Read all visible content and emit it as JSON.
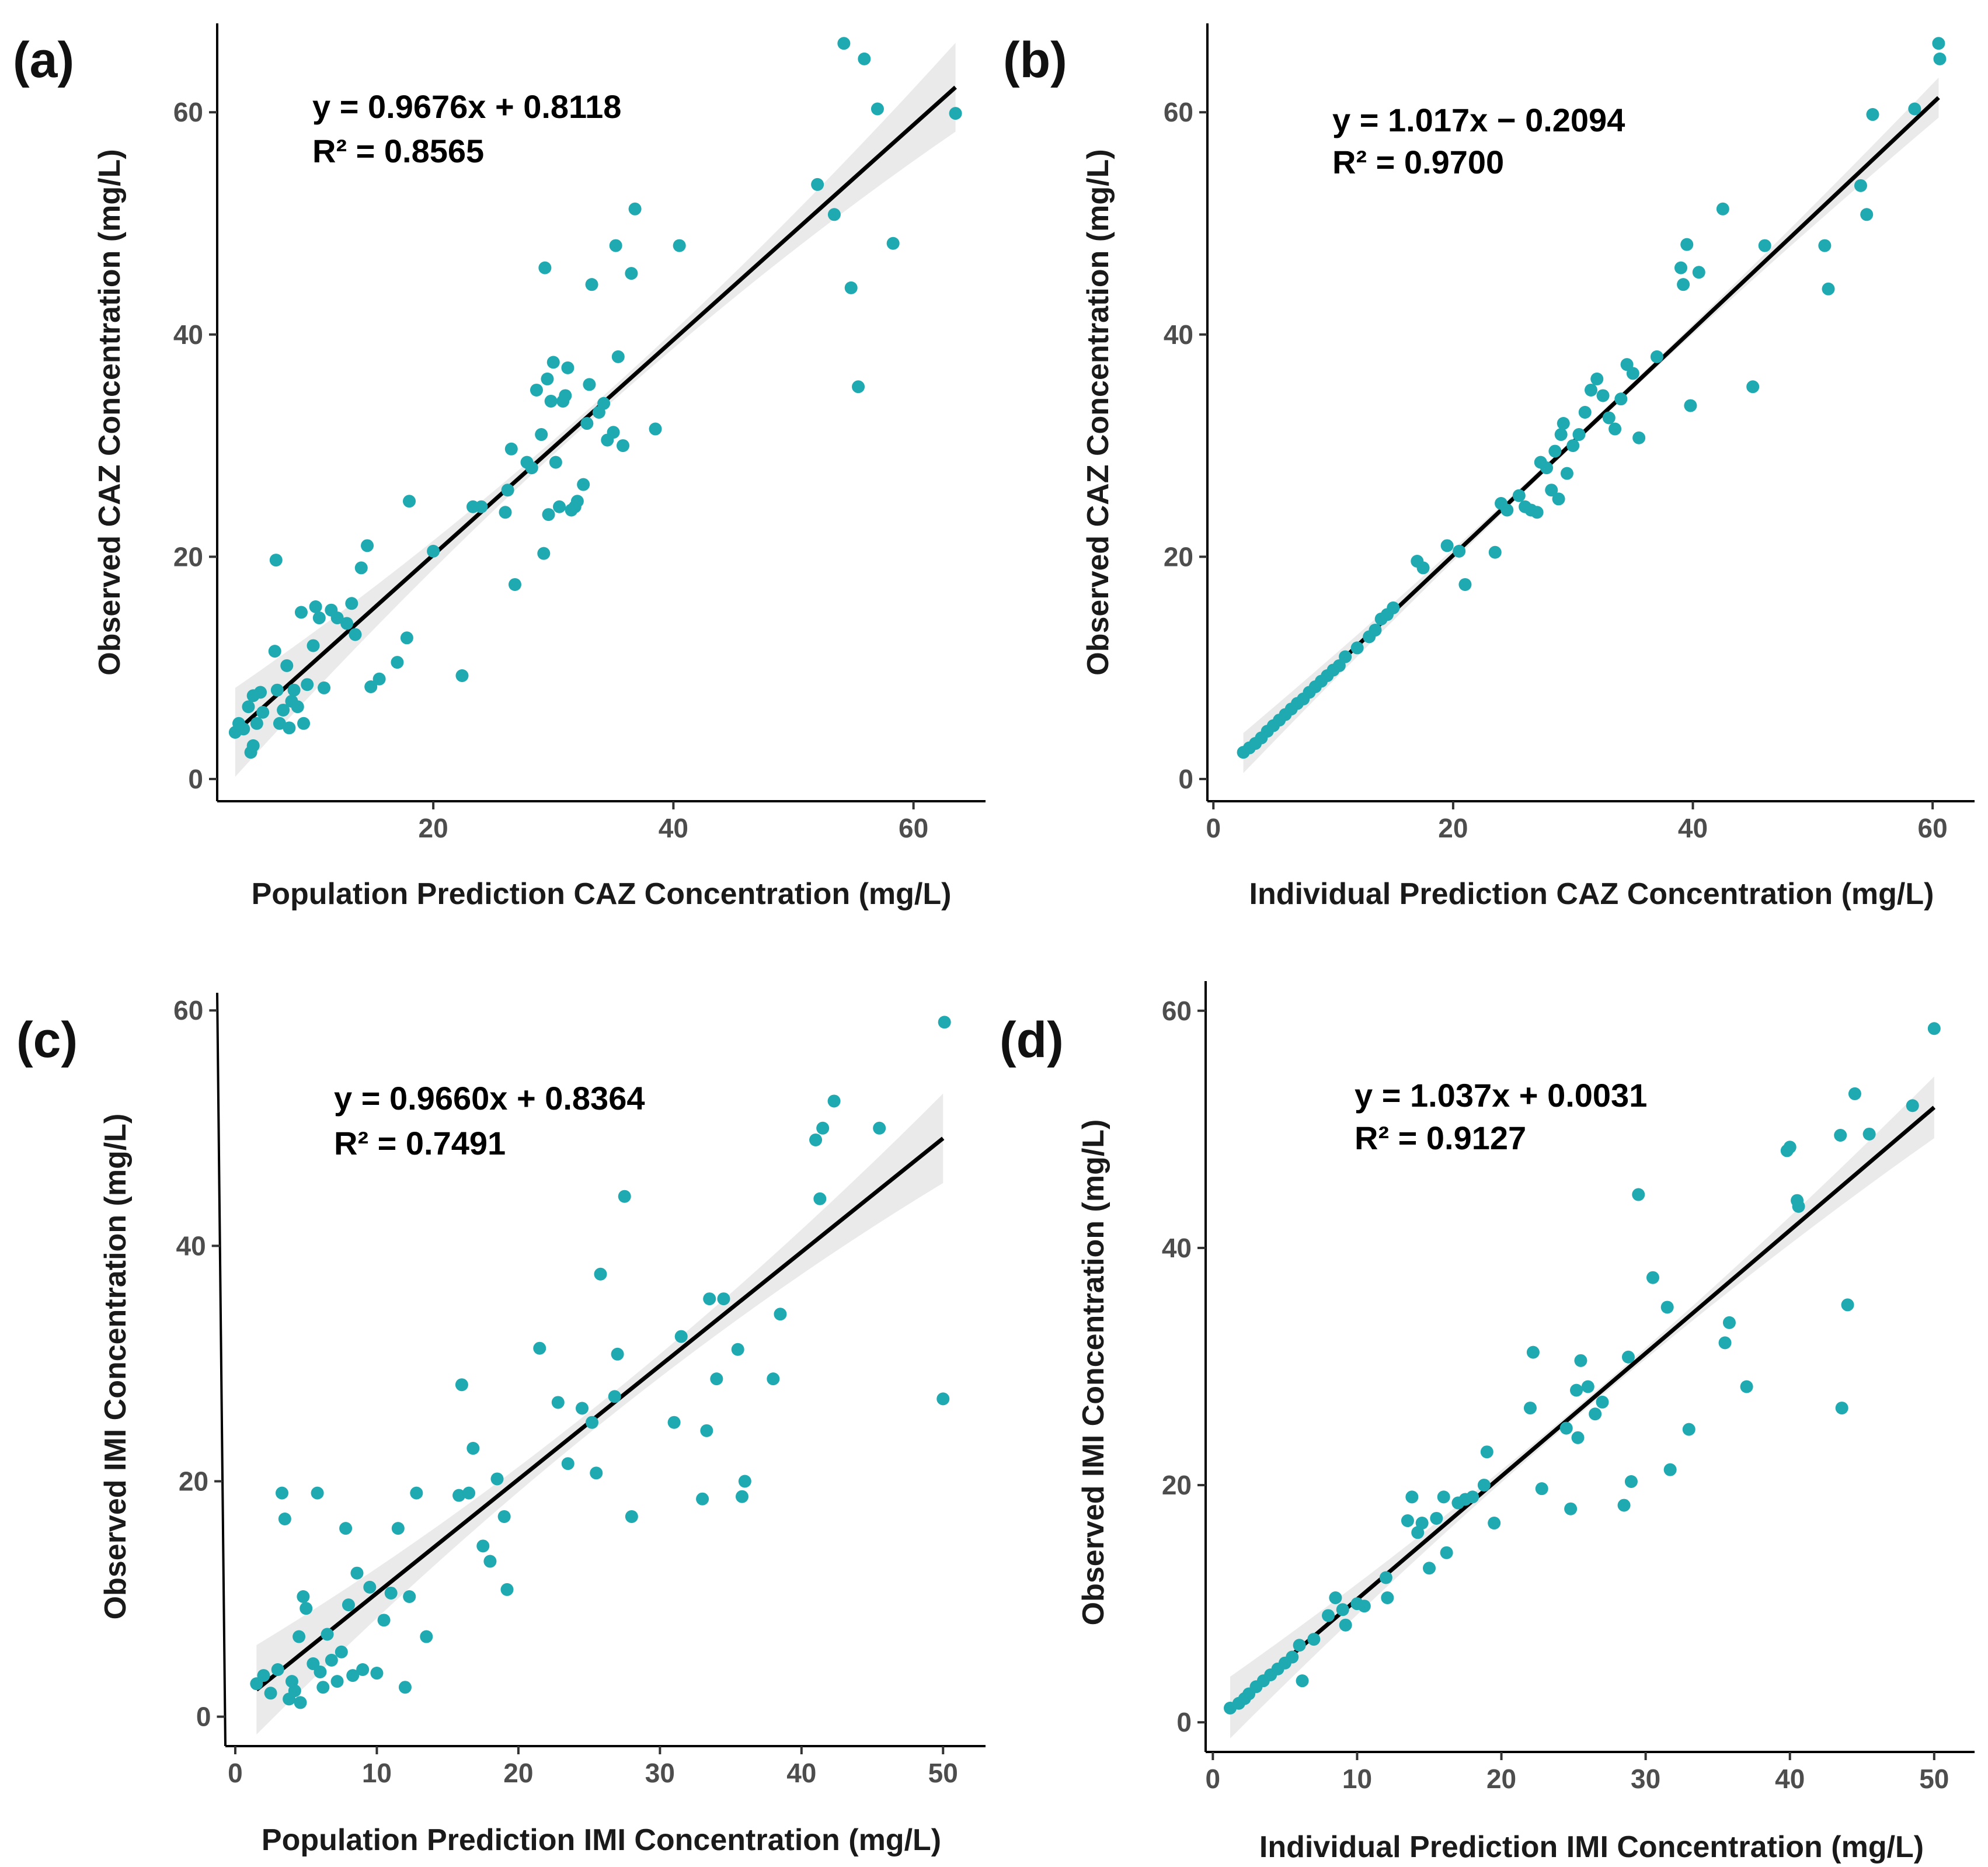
{
  "chart_data": [
    {
      "panel": "(a)",
      "type": "scatter",
      "xlabel": "Population Prediction CAZ Concentration (mg/L)",
      "ylabel": "Observed CAZ Concentration (mg/L)",
      "equation": "y = 0.9676x + 0.8118",
      "r2": "R² = 0.8565",
      "slope": 0.9676,
      "intercept": 0.8118,
      "xlim": [
        2,
        66
      ],
      "ylim": [
        -2,
        68
      ],
      "xticks": [
        20,
        40,
        60
      ],
      "yticks": [
        0,
        20,
        40,
        60
      ],
      "fit_range": [
        3.5,
        63.5
      ],
      "band_width": [
        0.6,
        4.0
      ],
      "points": [
        [
          3.5,
          4.2
        ],
        [
          3.8,
          5.0
        ],
        [
          4.2,
          4.5
        ],
        [
          4.6,
          6.5
        ],
        [
          4.8,
          2.4
        ],
        [
          5.0,
          3.0
        ],
        [
          5.0,
          7.5
        ],
        [
          5.3,
          5.0
        ],
        [
          5.6,
          7.8
        ],
        [
          5.8,
          6.0
        ],
        [
          6.8,
          11.5
        ],
        [
          6.9,
          19.7
        ],
        [
          7.0,
          8.0
        ],
        [
          7.2,
          5.0
        ],
        [
          7.5,
          6.2
        ],
        [
          7.8,
          10.2
        ],
        [
          8.0,
          4.6
        ],
        [
          8.2,
          7.0
        ],
        [
          8.4,
          8.0
        ],
        [
          8.7,
          6.5
        ],
        [
          9.0,
          15.0
        ],
        [
          9.2,
          5.0
        ],
        [
          9.5,
          8.5
        ],
        [
          10.0,
          12.0
        ],
        [
          10.2,
          15.5
        ],
        [
          10.5,
          14.5
        ],
        [
          10.9,
          8.2
        ],
        [
          11.5,
          15.2
        ],
        [
          12.0,
          14.5
        ],
        [
          12.8,
          14.0
        ],
        [
          13.2,
          15.8
        ],
        [
          13.5,
          13.0
        ],
        [
          14.0,
          19.0
        ],
        [
          14.5,
          21.0
        ],
        [
          14.8,
          8.3
        ],
        [
          15.5,
          9.0
        ],
        [
          17.0,
          10.5
        ],
        [
          17.8,
          12.7
        ],
        [
          18.0,
          25.0
        ],
        [
          20.0,
          20.5
        ],
        [
          22.4,
          9.3
        ],
        [
          23.3,
          24.5
        ],
        [
          24.0,
          24.5
        ],
        [
          26.0,
          24.0
        ],
        [
          26.5,
          29.7
        ],
        [
          26.2,
          26.0
        ],
        [
          26.8,
          17.5
        ],
        [
          27.8,
          28.5
        ],
        [
          28.2,
          28.0
        ],
        [
          28.6,
          35.0
        ],
        [
          29.0,
          31.0
        ],
        [
          29.3,
          46.0
        ],
        [
          29.2,
          20.3
        ],
        [
          29.5,
          36.0
        ],
        [
          29.8,
          34.0
        ],
        [
          29.6,
          23.8
        ],
        [
          30.0,
          37.5
        ],
        [
          30.2,
          28.5
        ],
        [
          30.5,
          24.5
        ],
        [
          30.8,
          34.0
        ],
        [
          31.0,
          34.5
        ],
        [
          31.2,
          37.0
        ],
        [
          31.5,
          24.2
        ],
        [
          31.8,
          24.5
        ],
        [
          32.0,
          25.0
        ],
        [
          32.5,
          26.5
        ],
        [
          32.8,
          32.0
        ],
        [
          33.0,
          35.5
        ],
        [
          33.2,
          44.5
        ],
        [
          33.8,
          33.0
        ],
        [
          34.2,
          33.8
        ],
        [
          34.5,
          30.5
        ],
        [
          35.0,
          31.2
        ],
        [
          35.2,
          48.0
        ],
        [
          35.4,
          38.0
        ],
        [
          35.8,
          30.0
        ],
        [
          36.5,
          45.5
        ],
        [
          36.8,
          51.3
        ],
        [
          38.5,
          31.5
        ],
        [
          40.5,
          48.0
        ],
        [
          52.0,
          53.5
        ],
        [
          53.4,
          50.8
        ],
        [
          54.2,
          66.2
        ],
        [
          54.8,
          44.2
        ],
        [
          55.4,
          35.3
        ],
        [
          55.9,
          64.8
        ],
        [
          57.0,
          60.3
        ],
        [
          58.3,
          48.2
        ],
        [
          63.5,
          59.9
        ]
      ]
    },
    {
      "panel": "(b)",
      "type": "scatter",
      "xlabel": "Individual Prediction CAZ Concentration (mg/L)",
      "ylabel": "Observed CAZ Concentration (mg/L)",
      "equation": "y = 1.017x − 0.2094",
      "r2": "R² = 0.9700",
      "slope": 1.017,
      "intercept": -0.2094,
      "xlim": [
        -0.5,
        63.5
      ],
      "ylim": [
        -2,
        68
      ],
      "xticks": [
        0,
        20,
        40,
        60
      ],
      "yticks": [
        0,
        20,
        40,
        60
      ],
      "fit_range": [
        2.5,
        60.5
      ],
      "band_width": [
        0.3,
        1.8
      ],
      "points": [
        [
          2.5,
          2.4
        ],
        [
          3.0,
          2.8
        ],
        [
          3.5,
          3.2
        ],
        [
          4.0,
          3.7
        ],
        [
          4.5,
          4.3
        ],
        [
          5.0,
          4.8
        ],
        [
          5.5,
          5.3
        ],
        [
          6.0,
          5.8
        ],
        [
          6.5,
          6.3
        ],
        [
          7.0,
          6.8
        ],
        [
          7.5,
          7.2
        ],
        [
          8.0,
          7.8
        ],
        [
          8.5,
          8.3
        ],
        [
          9.0,
          8.8
        ],
        [
          9.5,
          9.3
        ],
        [
          10.0,
          9.8
        ],
        [
          10.5,
          10.2
        ],
        [
          11.0,
          11.0
        ],
        [
          12.0,
          11.8
        ],
        [
          13.0,
          12.8
        ],
        [
          13.5,
          13.4
        ],
        [
          14.0,
          14.4
        ],
        [
          14.5,
          14.8
        ],
        [
          15.0,
          15.4
        ],
        [
          17.0,
          19.6
        ],
        [
          17.5,
          19.0
        ],
        [
          19.5,
          21.0
        ],
        [
          20.5,
          20.5
        ],
        [
          21.0,
          17.5
        ],
        [
          23.5,
          20.4
        ],
        [
          24.0,
          24.8
        ],
        [
          24.5,
          24.2
        ],
        [
          25.5,
          25.5
        ],
        [
          26.0,
          24.5
        ],
        [
          26.5,
          24.2
        ],
        [
          27.0,
          24.0
        ],
        [
          27.3,
          28.5
        ],
        [
          27.8,
          28.0
        ],
        [
          28.2,
          26.0
        ],
        [
          28.5,
          29.5
        ],
        [
          28.8,
          25.2
        ],
        [
          29.0,
          31.0
        ],
        [
          29.2,
          32.0
        ],
        [
          29.5,
          27.5
        ],
        [
          30.0,
          30.0
        ],
        [
          30.5,
          31.0
        ],
        [
          31.0,
          33.0
        ],
        [
          31.5,
          35.0
        ],
        [
          32.0,
          36.0
        ],
        [
          32.5,
          34.5
        ],
        [
          33.0,
          32.5
        ],
        [
          33.5,
          31.5
        ],
        [
          34.0,
          34.2
        ],
        [
          34.5,
          37.3
        ],
        [
          35.0,
          36.5
        ],
        [
          35.5,
          30.7
        ],
        [
          37.0,
          38.0
        ],
        [
          39.0,
          46.0
        ],
        [
          39.2,
          44.5
        ],
        [
          39.5,
          48.1
        ],
        [
          39.8,
          33.6
        ],
        [
          40.5,
          45.6
        ],
        [
          42.5,
          51.3
        ],
        [
          45.0,
          35.3
        ],
        [
          46.0,
          48.0
        ],
        [
          51.0,
          48.0
        ],
        [
          51.3,
          44.1
        ],
        [
          54.0,
          53.4
        ],
        [
          54.5,
          50.8
        ],
        [
          55.0,
          59.8
        ],
        [
          58.5,
          60.3
        ],
        [
          60.5,
          66.2
        ],
        [
          60.6,
          64.8
        ]
      ]
    },
    {
      "panel": "(c)",
      "type": "scatter",
      "xlabel": "Population Prediction IMI Concentration (mg/L)",
      "ylabel": "Observed IMI Concentration (mg/L)",
      "equation": "y = 0.9660x + 0.8364",
      "r2": "R² = 0.7491",
      "slope": 0.966,
      "intercept": 0.8364,
      "xlim": [
        -0.7,
        53
      ],
      "ylim": [
        -2.5,
        61.5
      ],
      "xticks": [
        0,
        10,
        20,
        30,
        40,
        50
      ],
      "yticks": [
        0,
        20,
        40,
        60
      ],
      "fit_range": [
        1.5,
        50.0
      ],
      "band_width": [
        0.9,
        3.8
      ],
      "points": [
        [
          1.5,
          2.8
        ],
        [
          2.0,
          3.5
        ],
        [
          2.5,
          2.0
        ],
        [
          3.0,
          4.0
        ],
        [
          3.3,
          19.0
        ],
        [
          3.5,
          16.8
        ],
        [
          3.8,
          1.5
        ],
        [
          4.0,
          3.0
        ],
        [
          4.2,
          2.2
        ],
        [
          4.5,
          6.8
        ],
        [
          4.8,
          10.2
        ],
        [
          5.0,
          9.2
        ],
        [
          4.6,
          1.2
        ],
        [
          5.5,
          4.5
        ],
        [
          5.8,
          19.0
        ],
        [
          6.0,
          3.8
        ],
        [
          6.2,
          2.5
        ],
        [
          6.5,
          7.0
        ],
        [
          6.8,
          4.8
        ],
        [
          7.2,
          3.0
        ],
        [
          7.5,
          5.5
        ],
        [
          7.8,
          16.0
        ],
        [
          8.0,
          9.5
        ],
        [
          8.3,
          3.5
        ],
        [
          8.6,
          12.2
        ],
        [
          9.0,
          4.0
        ],
        [
          9.5,
          11.0
        ],
        [
          10.0,
          3.7
        ],
        [
          10.5,
          8.2
        ],
        [
          11.0,
          10.5
        ],
        [
          11.5,
          16.0
        ],
        [
          12.0,
          2.5
        ],
        [
          12.3,
          10.2
        ],
        [
          12.8,
          19.0
        ],
        [
          13.5,
          6.8
        ],
        [
          15.8,
          18.8
        ],
        [
          16.0,
          28.2
        ],
        [
          16.5,
          19.0
        ],
        [
          16.8,
          22.8
        ],
        [
          17.5,
          14.5
        ],
        [
          18.0,
          13.2
        ],
        [
          18.5,
          20.2
        ],
        [
          19.0,
          17.0
        ],
        [
          19.2,
          10.8
        ],
        [
          21.5,
          31.3
        ],
        [
          22.8,
          26.7
        ],
        [
          23.5,
          21.5
        ],
        [
          24.5,
          26.2
        ],
        [
          25.2,
          25.0
        ],
        [
          25.5,
          20.7
        ],
        [
          25.8,
          37.6
        ],
        [
          26.8,
          27.2
        ],
        [
          27.0,
          30.8
        ],
        [
          27.5,
          44.2
        ],
        [
          28.0,
          17.0
        ],
        [
          31.0,
          25.0
        ],
        [
          31.5,
          32.3
        ],
        [
          33.0,
          18.5
        ],
        [
          33.3,
          24.3
        ],
        [
          33.5,
          35.5
        ],
        [
          34.0,
          28.7
        ],
        [
          34.5,
          35.5
        ],
        [
          35.5,
          31.2
        ],
        [
          35.8,
          18.7
        ],
        [
          36.0,
          20.0
        ],
        [
          38.0,
          28.7
        ],
        [
          38.5,
          34.2
        ],
        [
          41.0,
          49.0
        ],
        [
          41.3,
          44.0
        ],
        [
          41.5,
          50.0
        ],
        [
          42.3,
          52.3
        ],
        [
          45.5,
          50.0
        ],
        [
          50.0,
          27.0
        ],
        [
          50.1,
          59.0
        ]
      ]
    },
    {
      "panel": "(d)",
      "type": "scatter",
      "xlabel": "Individual Prediction IMI Concentration (mg/L)",
      "ylabel": "Observed IMI Concentration (mg/L)",
      "equation": "y = 1.037x + 0.0031",
      "r2": "R² = 0.9127",
      "slope": 1.037,
      "intercept": 0.0031,
      "xlim": [
        -0.5,
        52.8
      ],
      "ylim": [
        -2.5,
        62.5
      ],
      "xticks": [
        0,
        10,
        20,
        30,
        40,
        50
      ],
      "yticks": [
        0,
        20,
        40,
        60
      ],
      "fit_range": [
        1.2,
        50.0
      ],
      "band_width": [
        0.4,
        2.6
      ],
      "points": [
        [
          1.2,
          1.2
        ],
        [
          1.8,
          1.6
        ],
        [
          2.2,
          2.0
        ],
        [
          2.5,
          2.4
        ],
        [
          3.0,
          3.0
        ],
        [
          3.5,
          3.5
        ],
        [
          4.0,
          4.0
        ],
        [
          4.5,
          4.5
        ],
        [
          5.0,
          5.0
        ],
        [
          5.5,
          5.5
        ],
        [
          6.0,
          6.5
        ],
        [
          6.2,
          3.5
        ],
        [
          7.0,
          7.0
        ],
        [
          8.0,
          9.0
        ],
        [
          8.5,
          10.5
        ],
        [
          9.0,
          9.5
        ],
        [
          9.2,
          8.2
        ],
        [
          10.0,
          10.0
        ],
        [
          10.5,
          9.8
        ],
        [
          12.0,
          12.2
        ],
        [
          12.1,
          10.5
        ],
        [
          13.5,
          17.0
        ],
        [
          13.8,
          19.0
        ],
        [
          14.2,
          16.0
        ],
        [
          14.5,
          16.8
        ],
        [
          15.0,
          13.0
        ],
        [
          15.5,
          17.2
        ],
        [
          16.0,
          19.0
        ],
        [
          16.2,
          14.3
        ],
        [
          17.0,
          18.5
        ],
        [
          17.5,
          18.8
        ],
        [
          18.0,
          19.0
        ],
        [
          18.8,
          20.0
        ],
        [
          19.0,
          22.8
        ],
        [
          19.5,
          16.8
        ],
        [
          22.0,
          26.5
        ],
        [
          22.2,
          31.2
        ],
        [
          22.8,
          19.7
        ],
        [
          24.5,
          24.8
        ],
        [
          24.8,
          18.0
        ],
        [
          25.2,
          28.0
        ],
        [
          25.5,
          30.5
        ],
        [
          25.3,
          24.0
        ],
        [
          26.0,
          28.3
        ],
        [
          26.5,
          26.0
        ],
        [
          27.0,
          27.0
        ],
        [
          28.5,
          18.3
        ],
        [
          28.8,
          30.8
        ],
        [
          29.0,
          20.3
        ],
        [
          29.5,
          44.5
        ],
        [
          30.5,
          37.5
        ],
        [
          31.5,
          35.0
        ],
        [
          31.7,
          21.3
        ],
        [
          33.0,
          24.7
        ],
        [
          35.5,
          32.0
        ],
        [
          35.8,
          33.7
        ],
        [
          37.0,
          28.3
        ],
        [
          39.8,
          48.2
        ],
        [
          40.0,
          48.5
        ],
        [
          40.5,
          44.0
        ],
        [
          40.6,
          43.5
        ],
        [
          43.5,
          49.5
        ],
        [
          43.6,
          26.5
        ],
        [
          44.0,
          35.2
        ],
        [
          44.5,
          53.0
        ],
        [
          45.5,
          49.6
        ],
        [
          48.5,
          52.0
        ],
        [
          50.0,
          58.5
        ]
      ]
    }
  ]
}
